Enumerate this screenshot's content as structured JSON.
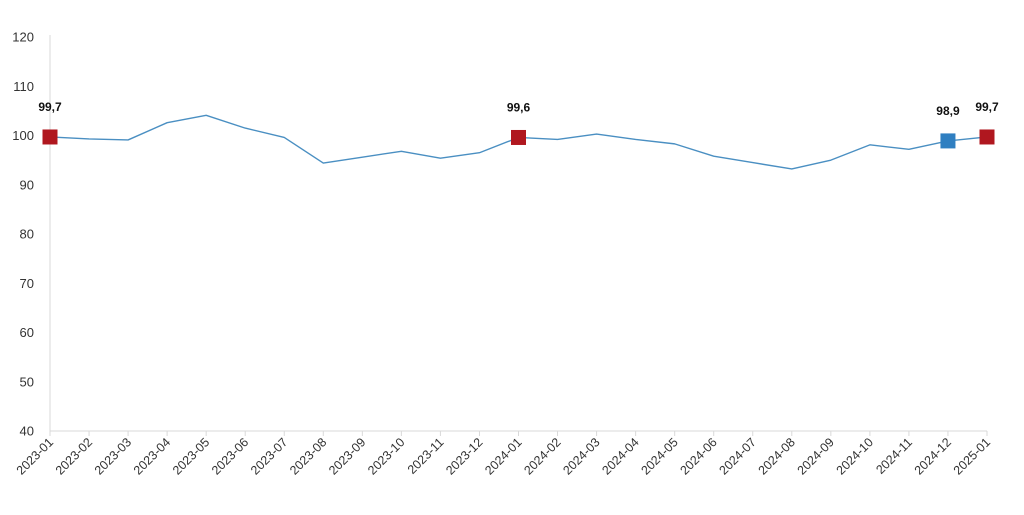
{
  "chart_data": {
    "type": "line",
    "title": "",
    "xlabel": "",
    "ylabel": "",
    "ylim": [
      40,
      120
    ],
    "yticks": [
      40,
      50,
      60,
      70,
      80,
      90,
      100,
      110,
      120
    ],
    "grid": false,
    "legend": "none",
    "categories": [
      "2023-01",
      "2023-02",
      "2023-03",
      "2023-04",
      "2023-05",
      "2023-06",
      "2023-07",
      "2023-08",
      "2023-09",
      "2023-10",
      "2023-11",
      "2023-12",
      "2024-01",
      "2024-02",
      "2024-03",
      "2024-04",
      "2024-05",
      "2024-06",
      "2024-07",
      "2024-08",
      "2024-09",
      "2024-10",
      "2024-11",
      "2024-12",
      "2025-01"
    ],
    "series": [
      {
        "values": [
          99.7,
          99.3,
          99.1,
          102.6,
          104.1,
          101.5,
          99.6,
          94.4,
          95.6,
          96.8,
          95.4,
          96.5,
          99.6,
          99.2,
          100.3,
          99.2,
          98.3,
          95.8,
          94.5,
          93.2,
          95.0,
          98.1,
          97.2,
          98.9,
          99.7
        ],
        "color": "#4a8fc2"
      }
    ],
    "markers": [
      {
        "index": 0,
        "label": "99,7",
        "color": "#b0171f"
      },
      {
        "index": 12,
        "label": "99,6",
        "color": "#b0171f"
      },
      {
        "index": 23,
        "label": "98,9",
        "color": "#2f7fc1"
      },
      {
        "index": 24,
        "label": "99,7",
        "color": "#b0171f"
      }
    ]
  }
}
